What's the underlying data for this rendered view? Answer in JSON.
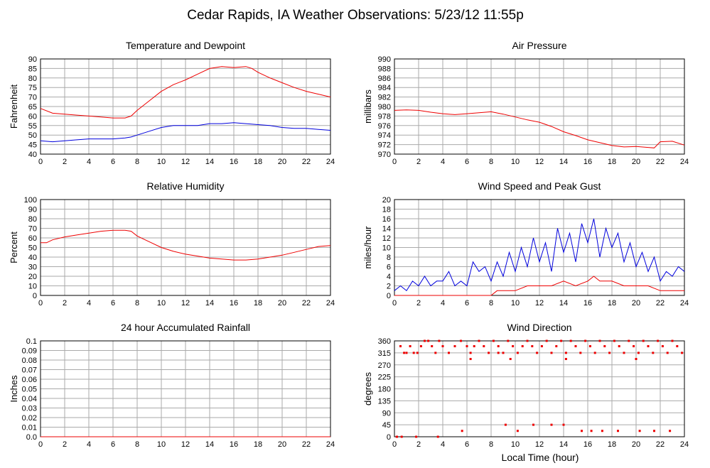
{
  "page": {
    "title": "Cedar Rapids, IA Weather Observations: 5/23/12 11:55p",
    "x_axis_label": "Local Time (hour)"
  },
  "chart_data": [
    {
      "id": "temp",
      "type": "line",
      "title": "Temperature and Dewpoint",
      "ylabel": "Fahrenheit",
      "xlim": [
        0,
        24
      ],
      "ylim": [
        40,
        90
      ],
      "xticks": [
        "0",
        "2",
        "4",
        "6",
        "8",
        "10",
        "12",
        "14",
        "16",
        "18",
        "20",
        "22",
        "24"
      ],
      "yticks": [
        "40",
        "45",
        "50",
        "55",
        "60",
        "65",
        "70",
        "75",
        "80",
        "85",
        "90"
      ],
      "grid": true,
      "series": [
        {
          "color": "#ee0000",
          "x": [
            0,
            1,
            2,
            3,
            4,
            5,
            6,
            6.5,
            7,
            7.5,
            8,
            9,
            10,
            11,
            12,
            13,
            14,
            15,
            16,
            17,
            17.5,
            18,
            19,
            20,
            21,
            22,
            23,
            24
          ],
          "y": [
            64,
            61.5,
            61,
            60.5,
            60,
            59.5,
            59,
            59,
            59,
            60,
            63,
            68,
            73,
            76.5,
            79,
            82,
            85,
            86,
            85.5,
            86,
            85,
            83,
            80,
            77.5,
            75,
            73,
            71.5,
            70
          ]
        },
        {
          "color": "#0000dd",
          "x": [
            0,
            1,
            2,
            3,
            4,
            5,
            6,
            7,
            7.5,
            8,
            9,
            10,
            11,
            12,
            13,
            14,
            15,
            16,
            17,
            18,
            19,
            20,
            21,
            22,
            23,
            24
          ],
          "y": [
            47,
            46.5,
            47,
            47.5,
            48,
            48,
            48,
            48.5,
            49,
            50,
            52,
            54,
            55,
            55,
            55,
            56,
            56,
            56.5,
            56,
            55.5,
            55,
            54,
            53.5,
            53.5,
            53,
            52.5
          ]
        }
      ]
    },
    {
      "id": "pressure",
      "type": "line",
      "title": "Air Pressure",
      "ylabel": "millibars",
      "xlim": [
        0,
        24
      ],
      "ylim": [
        970,
        990
      ],
      "xticks": [
        "0",
        "2",
        "4",
        "6",
        "8",
        "10",
        "12",
        "14",
        "16",
        "18",
        "20",
        "22",
        "24"
      ],
      "yticks": [
        "970",
        "972",
        "974",
        "976",
        "978",
        "980",
        "982",
        "984",
        "986",
        "988",
        "990"
      ],
      "grid": true,
      "series": [
        {
          "color": "#ee0000",
          "x": [
            0,
            1,
            2,
            3,
            4,
            5,
            6,
            7,
            8,
            9,
            10,
            11,
            12,
            13,
            14,
            15,
            16,
            17,
            18,
            19,
            20,
            21,
            21.5,
            22,
            23,
            24
          ],
          "y": [
            979.2,
            979.3,
            979.2,
            978.8,
            978.5,
            978.3,
            978.5,
            978.7,
            978.9,
            978.4,
            977.8,
            977.2,
            976.7,
            975.8,
            974.7,
            973.9,
            973,
            972.4,
            971.8,
            971.5,
            971.6,
            971.4,
            971.3,
            972.6,
            972.7,
            971.9
          ]
        }
      ]
    },
    {
      "id": "humidity",
      "type": "line",
      "title": "Relative Humidity",
      "ylabel": "Percent",
      "xlim": [
        0,
        24
      ],
      "ylim": [
        0,
        100
      ],
      "xticks": [
        "0",
        "2",
        "4",
        "6",
        "8",
        "10",
        "12",
        "14",
        "16",
        "18",
        "20",
        "22",
        "24"
      ],
      "yticks": [
        "0",
        "10",
        "20",
        "30",
        "40",
        "50",
        "60",
        "70",
        "80",
        "90",
        "100"
      ],
      "grid": true,
      "series": [
        {
          "color": "#ee0000",
          "x": [
            0,
            0.5,
            1,
            2,
            3,
            4,
            5,
            6,
            7,
            7.5,
            8,
            9,
            10,
            11,
            12,
            13,
            14,
            15,
            16,
            17,
            18,
            19,
            20,
            21,
            22,
            23,
            24
          ],
          "y": [
            55,
            55,
            58,
            61,
            63,
            65,
            67,
            68,
            68,
            67,
            62,
            56,
            50,
            46,
            43,
            41,
            39,
            38,
            37,
            37,
            38,
            40,
            42,
            45,
            48,
            51,
            52
          ]
        }
      ]
    },
    {
      "id": "wind",
      "type": "line",
      "title": "Wind Speed and Peak Gust",
      "ylabel": "miles/hour",
      "xlim": [
        0,
        24
      ],
      "ylim": [
        0,
        20
      ],
      "xticks": [
        "0",
        "2",
        "4",
        "6",
        "8",
        "10",
        "12",
        "14",
        "16",
        "18",
        "20",
        "22",
        "24"
      ],
      "yticks": [
        "0",
        "2",
        "4",
        "6",
        "8",
        "10",
        "12",
        "14",
        "16",
        "18",
        "20"
      ],
      "grid": true,
      "series": [
        {
          "color": "#0000dd",
          "x": [
            0,
            0.5,
            1,
            1.5,
            2,
            2.5,
            3,
            3.5,
            4,
            4.5,
            5,
            5.5,
            6,
            6.5,
            7,
            7.5,
            8,
            8.5,
            9,
            9.5,
            10,
            10.5,
            11,
            11.5,
            12,
            12.5,
            13,
            13.5,
            14,
            14.5,
            15,
            15.5,
            16,
            16.5,
            17,
            17.5,
            18,
            18.5,
            19,
            19.5,
            20,
            20.5,
            21,
            21.5,
            22,
            22.5,
            23,
            23.5,
            24
          ],
          "y": [
            1,
            2,
            1,
            3,
            2,
            4,
            2,
            3,
            3,
            5,
            2,
            3,
            2,
            7,
            5,
            6,
            3,
            7,
            4,
            9,
            5,
            10,
            6,
            12,
            7,
            11,
            5,
            14,
            9,
            13,
            7,
            15,
            11,
            16,
            8,
            14,
            10,
            13,
            7,
            11,
            6,
            9,
            5,
            8,
            3,
            5,
            4,
            6,
            5
          ]
        },
        {
          "color": "#ee0000",
          "x": [
            0,
            1,
            2,
            3,
            4,
            5,
            6,
            7,
            8,
            8.5,
            9,
            10,
            11,
            12,
            13,
            14,
            15,
            16,
            16.5,
            17,
            18,
            19,
            20,
            21,
            22,
            23,
            24
          ],
          "y": [
            0,
            0,
            0,
            0,
            0,
            0,
            0,
            0,
            0,
            1,
            1,
            1,
            2,
            2,
            2,
            3,
            2,
            3,
            4,
            3,
            3,
            2,
            2,
            2,
            1,
            1,
            1
          ]
        }
      ]
    },
    {
      "id": "rain",
      "type": "line",
      "title": "24 hour Accumulated Rainfall",
      "ylabel": "Inches",
      "xlim": [
        0,
        24
      ],
      "ylim": [
        0,
        0.1
      ],
      "xticks": [
        "0",
        "2",
        "4",
        "6",
        "8",
        "10",
        "12",
        "14",
        "16",
        "18",
        "20",
        "22",
        "24"
      ],
      "yticks": [
        "0.0",
        "0.01",
        "0.02",
        "0.03",
        "0.04",
        "0.05",
        "0.06",
        "0.07",
        "0.08",
        "0.09",
        "0.1"
      ],
      "grid": true,
      "series": [
        {
          "color": "#ee0000",
          "x": [
            0,
            24
          ],
          "y": [
            0,
            0
          ]
        }
      ]
    },
    {
      "id": "direction",
      "type": "scatter",
      "title": "Wind Direction",
      "ylabel": "degrees",
      "xlim": [
        0,
        24
      ],
      "ylim": [
        0,
        360
      ],
      "xticks": [
        "0",
        "2",
        "4",
        "6",
        "8",
        "10",
        "12",
        "14",
        "16",
        "18",
        "20",
        "22",
        "24"
      ],
      "yticks": [
        "0",
        "45",
        "90",
        "135",
        "180",
        "225",
        "270",
        "315",
        "360"
      ],
      "grid": true,
      "series": [
        {
          "color": "#ee0000",
          "x": [
            0.2,
            0.5,
            0.8,
            1.0,
            1.3,
            1.6,
            1.9,
            2.2,
            2.5,
            2.8,
            3.1,
            3.4,
            3.7,
            4.0,
            4.5,
            5.0,
            5.5,
            6.0,
            6.3,
            6.6,
            7.0,
            7.4,
            7.8,
            8.2,
            8.6,
            9.0,
            9.4,
            9.8,
            10.2,
            10.6,
            11.0,
            11.4,
            11.8,
            12.2,
            12.6,
            13.0,
            13.4,
            13.8,
            14.2,
            14.6,
            15.0,
            15.4,
            15.8,
            16.2,
            16.6,
            17.0,
            17.4,
            17.8,
            18.2,
            18.6,
            19.0,
            19.4,
            19.8,
            20.2,
            20.6,
            21.0,
            21.4,
            21.8,
            22.2,
            22.6,
            23.0,
            23.4,
            23.8,
            0.2,
            0.6,
            1.8,
            3.6,
            5.6,
            9.2,
            10.2,
            11.5,
            13.0,
            14.0,
            15.5,
            16.3,
            17.2,
            18.5,
            20.3,
            21.5,
            22.8,
            6.3,
            8.6,
            9.6,
            14.2,
            20.0
          ],
          "y": [
            0,
            340,
            315,
            315,
            340,
            315,
            315,
            340,
            360,
            360,
            340,
            315,
            360,
            340,
            315,
            340,
            360,
            340,
            315,
            340,
            360,
            340,
            315,
            360,
            340,
            315,
            360,
            340,
            315,
            340,
            360,
            340,
            315,
            340,
            360,
            315,
            340,
            360,
            315,
            360,
            340,
            315,
            360,
            340,
            315,
            360,
            340,
            315,
            360,
            340,
            315,
            360,
            340,
            315,
            360,
            340,
            315,
            360,
            340,
            315,
            360,
            340,
            315,
            0,
            0,
            0,
            0,
            22,
            45,
            22,
            45,
            45,
            45,
            22,
            22,
            22,
            22,
            22,
            22,
            22,
            292,
            315,
            292,
            292,
            292
          ]
        }
      ]
    }
  ]
}
